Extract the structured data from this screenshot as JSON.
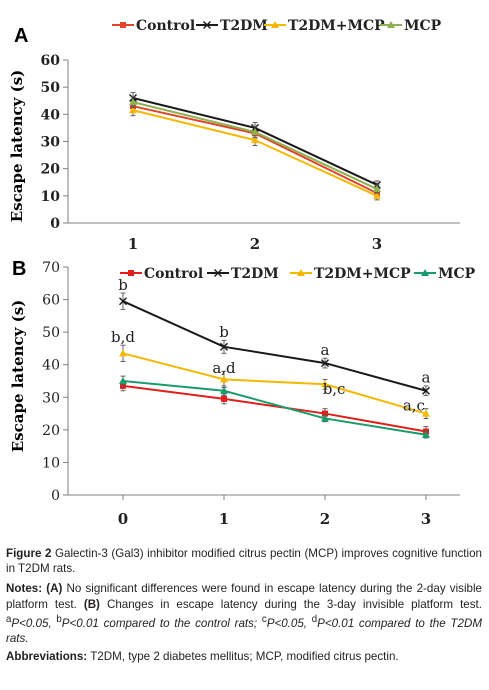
{
  "chart_data": [
    {
      "type": "line",
      "panel": "A",
      "ylabel": "Escape latency (s)",
      "xlabel": "",
      "categories": [
        "1",
        "2",
        "3"
      ],
      "yticks": [
        "0",
        "10",
        "20",
        "30",
        "40",
        "50",
        "60"
      ],
      "ylim": [
        0,
        60
      ],
      "grid": false,
      "legend": "top",
      "series": [
        {
          "name": "Control",
          "color": "#e0452b",
          "marker": "square",
          "values": [
            43,
            33,
            11
          ],
          "err": [
            2,
            2,
            1.5
          ]
        },
        {
          "name": "T2DM",
          "color": "#1a1a1a",
          "marker": "x",
          "values": [
            46,
            35,
            14
          ],
          "err": [
            2,
            2,
            1.5
          ]
        },
        {
          "name": "T2DM+MCP",
          "color": "#f5b800",
          "marker": "triangle",
          "values": [
            41.5,
            30.5,
            10
          ],
          "err": [
            2,
            2,
            1.5
          ]
        },
        {
          "name": "MCP",
          "color": "#8fb050",
          "marker": "triangle",
          "values": [
            44.5,
            33.5,
            12.5
          ],
          "err": [
            2,
            2,
            1.5
          ]
        }
      ]
    },
    {
      "type": "line",
      "panel": "B",
      "ylabel": "Escape latency (s)",
      "xlabel": "",
      "categories": [
        "0",
        "1",
        "2",
        "3"
      ],
      "yticks": [
        "0",
        "10",
        "20",
        "30",
        "40",
        "50",
        "60",
        "70"
      ],
      "ylim": [
        0,
        70
      ],
      "grid": false,
      "legend": "top",
      "series": [
        {
          "name": "Control",
          "color": "#e0201b",
          "marker": "square",
          "values": [
            33.5,
            29.5,
            25,
            19.5
          ],
          "err": [
            1.5,
            1.5,
            1.5,
            1.5
          ]
        },
        {
          "name": "T2DM",
          "color": "#1a1a1a",
          "marker": "x",
          "values": [
            59.5,
            45.5,
            40.5,
            32
          ],
          "err": [
            2.5,
            2,
            1.5,
            1.5
          ]
        },
        {
          "name": "T2DM+MCP",
          "color": "#f5b800",
          "marker": "triangle",
          "values": [
            43.5,
            35.5,
            34,
            25
          ],
          "err": [
            2.5,
            2.5,
            1.5,
            1.5
          ]
        },
        {
          "name": "MCP",
          "color": "#1a9b6b",
          "marker": "triangle",
          "values": [
            35,
            32,
            23.5,
            18.5
          ],
          "err": [
            1.5,
            1.5,
            1,
            1
          ]
        }
      ],
      "annotations": [
        {
          "text": "b",
          "x": 0,
          "y": 64.5
        },
        {
          "text": "b,d",
          "x": 0,
          "y": 48.5
        },
        {
          "text": "b",
          "x": 1,
          "y": 50
        },
        {
          "text": "a,d",
          "x": 1,
          "y": 39
        },
        {
          "text": "a",
          "x": 2,
          "y": 44.5
        },
        {
          "text": "b,c",
          "x": 2.09,
          "y": 32.5
        },
        {
          "text": "a",
          "x": 3,
          "y": 36
        },
        {
          "text": "a,c",
          "x": 2.88,
          "y": 27.5
        }
      ]
    }
  ],
  "caption": {
    "figure_label": "Figure 2",
    "title_text": "Galectin-3 (Gal3) inhibitor modified citrus pectin (MCP) improves cognitive function in T2DM rats.",
    "notes_label": "Notes:",
    "notes_a_label": "(A)",
    "notes_a_text": "No significant differences were found in escape latency during the 2-day visible platform test.",
    "notes_b_label": "(B)",
    "notes_b_text": "Changes in escape latency during the 3-day invisible platform test.",
    "sup_a": "a",
    "p_a": "P<0.05,",
    "sup_b": "b",
    "p_b": "P<0.01 compared to the control rats;",
    "sup_c": "c",
    "p_c": "P<0.05,",
    "sup_d": "d",
    "p_d": "P<0.01 compared to the T2DM rats.",
    "abbr_label": "Abbreviations:",
    "abbr_text": "T2DM, type 2 diabetes mellitus; MCP, modified citrus pectin."
  }
}
